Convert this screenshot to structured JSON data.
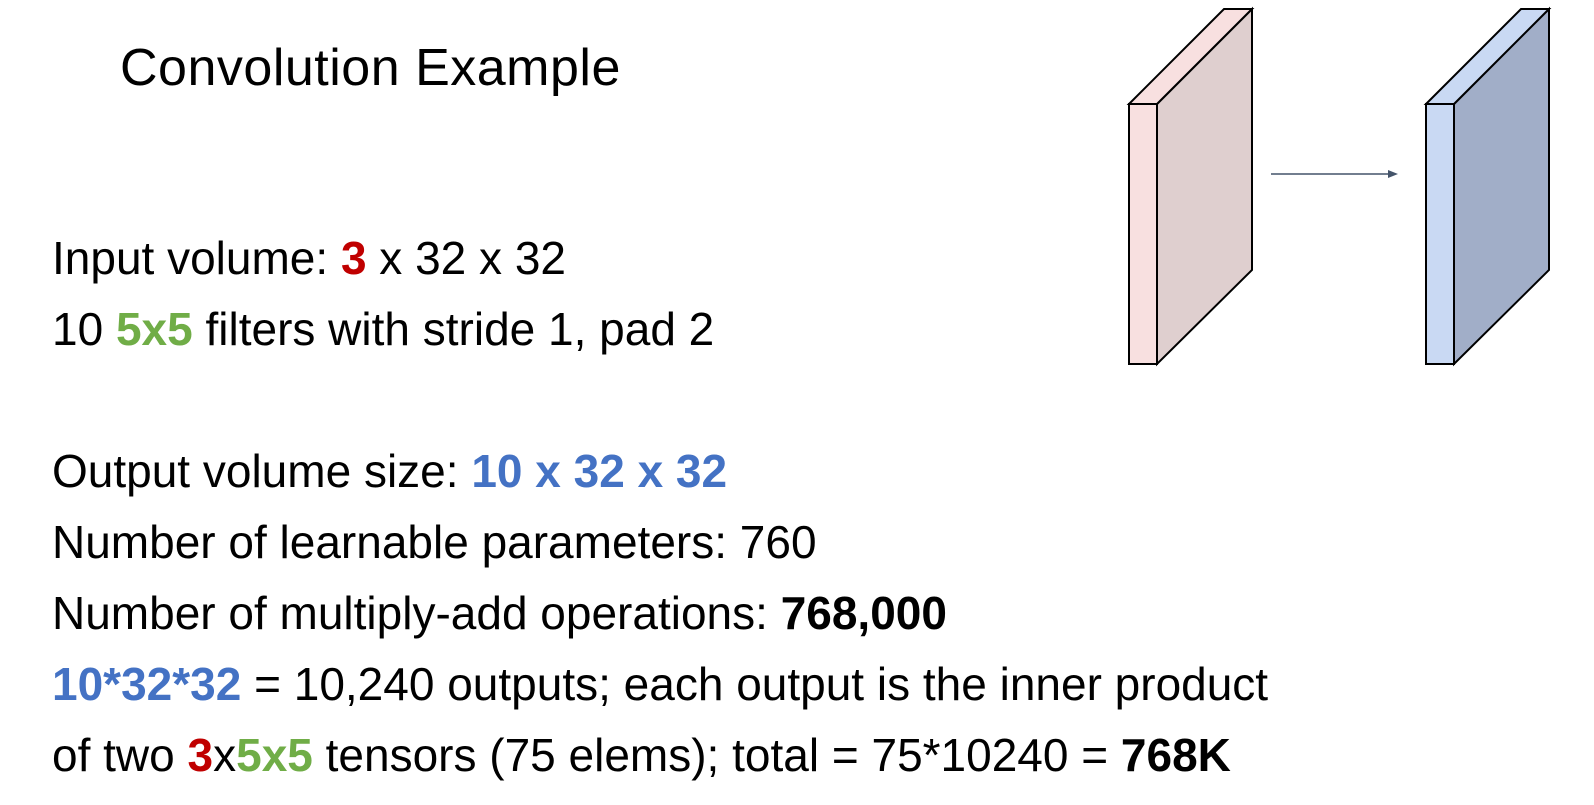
{
  "title": "Convolution Example",
  "input_line": {
    "prefix": "Input volume: ",
    "channels": "3",
    "suffix": " x 32 x 32"
  },
  "filter_line": {
    "prefix": "10 ",
    "filter_size": "5x5",
    "suffix": " filters with stride 1, pad 2"
  },
  "output_line": {
    "prefix": "Output volume size: ",
    "size": "10 x 32 x 32"
  },
  "params_line": {
    "text": "Number of learnable parameters: 760"
  },
  "ops_line": {
    "prefix": "Number of multiply-add operations: ",
    "value": "768,000"
  },
  "outputs_line": {
    "expr": "10*32*32",
    "suffix": " = 10,240 outputs; each output is the inner product"
  },
  "tensors_line": {
    "prefix": "of two ",
    "channels": "3",
    "x": "x",
    "filter_size": "5x5",
    "middle": " tensors (75 elems); total = 75*10240 = ",
    "total": "768K"
  },
  "colors": {
    "red": "#c00000",
    "green": "#70ad47",
    "blue": "#4472c4",
    "input_slab_front": "#f8e0e0",
    "input_slab_side": "#dfcfcf",
    "output_slab_front": "#c9d9f3",
    "output_slab_side": "#a1aec8",
    "arrow": "#44546a"
  }
}
